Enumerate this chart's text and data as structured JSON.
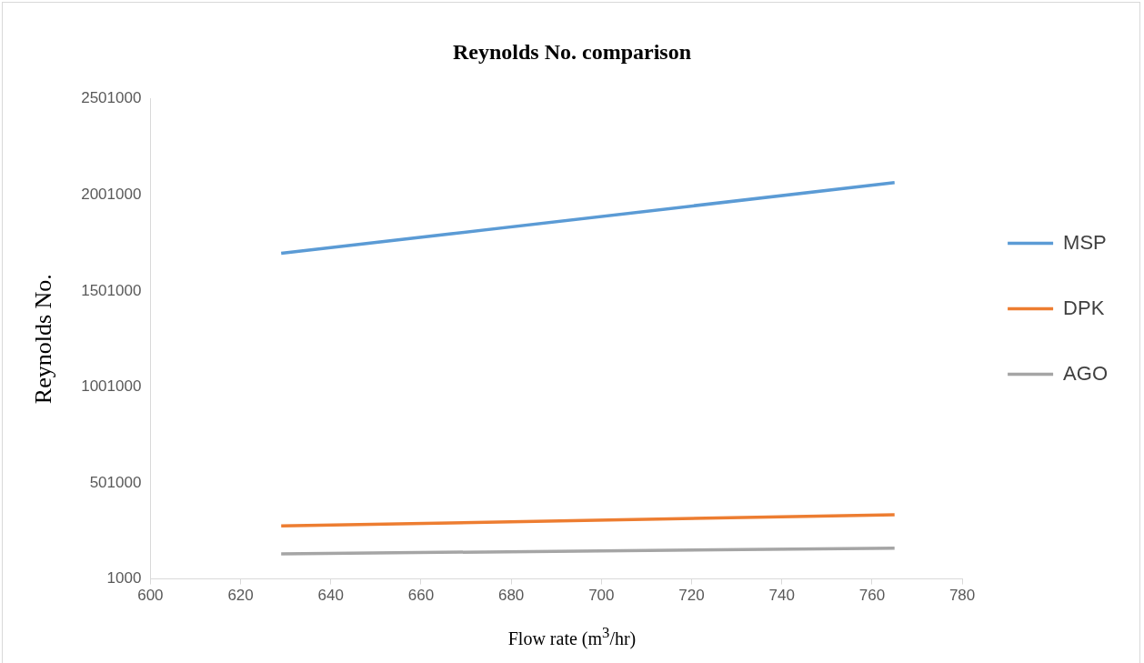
{
  "chart_data": {
    "type": "line",
    "title": "Reynolds No. comparison",
    "xlabel": "Flow rate (m$^{3}$/hr)",
    "ylabel": "Reynolds No.",
    "x": [
      629,
      765
    ],
    "series": [
      {
        "name": "MSP",
        "color": "#5b9bd5",
        "values": [
          1697000,
          2065000
        ]
      },
      {
        "name": "DPK",
        "color": "#ed7d31",
        "values": [
          277000,
          335000
        ]
      },
      {
        "name": "AGO",
        "color": "#a5a5a5",
        "values": [
          132000,
          161000
        ]
      }
    ],
    "xlim": [
      600,
      780
    ],
    "xticks": [
      600,
      620,
      640,
      660,
      680,
      700,
      720,
      740,
      760,
      780
    ],
    "ylim": [
      1000,
      2501000
    ],
    "yticks": [
      1000,
      501000,
      1001000,
      1501000,
      2001000,
      2501000
    ],
    "grid": false,
    "legend": "right"
  }
}
